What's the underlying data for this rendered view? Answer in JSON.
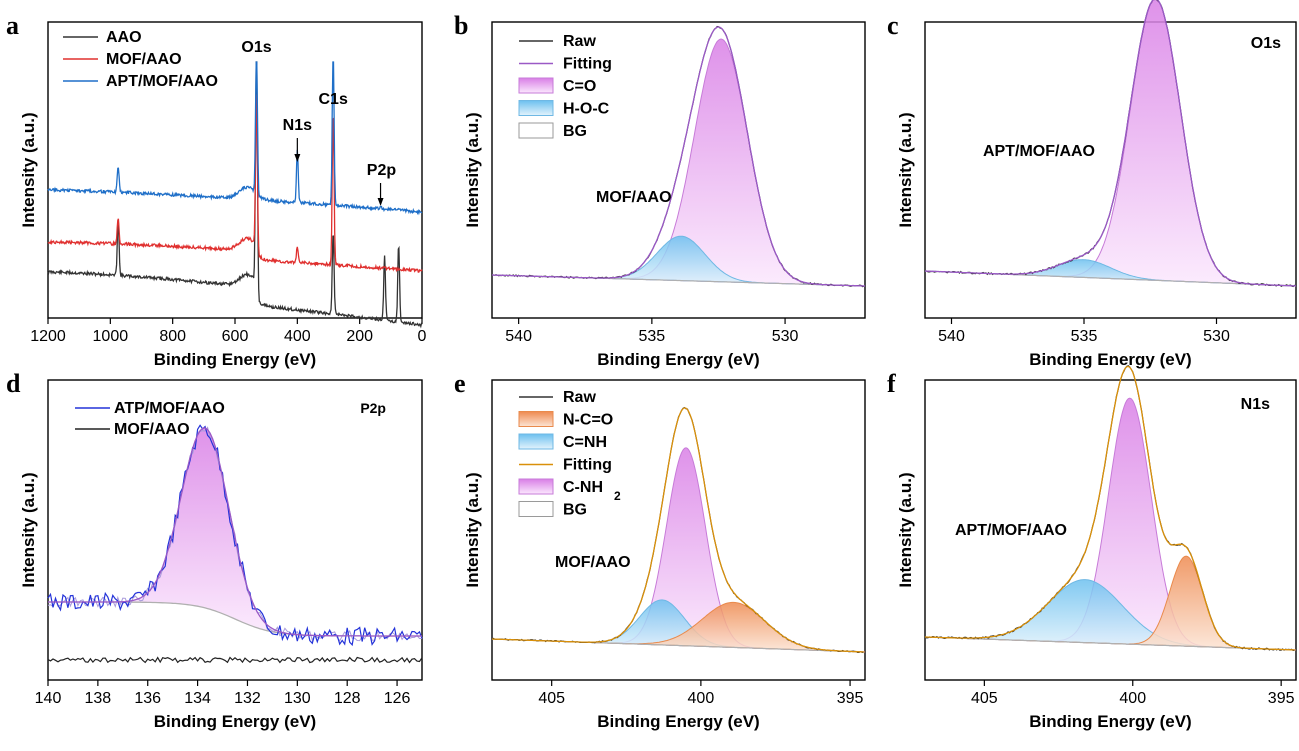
{
  "colors": {
    "black": "#333333",
    "red": "#e0302f",
    "blue": "#1f6fc8",
    "purple": "#9a59c6",
    "pink_fill": "#e6a8ee",
    "cyan_fill": "#9fd5f2",
    "orange_fill": "#f2a878",
    "orange_line": "#d9900a",
    "bg_line": "#b0b0b0",
    "blue_raw": "#2433d9"
  },
  "chart_data": [
    {
      "id": "a",
      "letter": "a",
      "type": "line",
      "xlabel": "Binding Energy (eV)",
      "ylabel": "Intensity (a.u.)",
      "xlim": [
        1200,
        0
      ],
      "xticks": [
        "1200",
        "1000",
        "800",
        "600",
        "400",
        "200",
        "0"
      ],
      "xtick_values": [
        1200,
        1000,
        800,
        600,
        400,
        200,
        0
      ],
      "legend": [
        "AAO",
        "MOF/AAO",
        "APT/MOF/AAO"
      ],
      "annotations": [
        "O1s",
        "N1s",
        "C1s",
        "P2p"
      ],
      "series": [
        {
          "name": "AAO",
          "peaks": [
            [
              975,
              0.22
            ],
            [
              531,
              1.0
            ],
            [
              285,
              0.32
            ],
            [
              120,
              0.25
            ],
            [
              75,
              0.3
            ]
          ]
        },
        {
          "name": "MOF/AAO",
          "peaks": [
            [
              975,
              0.1
            ],
            [
              531,
              0.62
            ],
            [
              400,
              0.06
            ],
            [
              285,
              0.6
            ]
          ]
        },
        {
          "name": "APT/MOF/AAO",
          "peaks": [
            [
              975,
              0.1
            ],
            [
              531,
              0.6
            ],
            [
              400,
              0.2
            ],
            [
              285,
              0.62
            ],
            [
              133,
              0.01
            ]
          ]
        }
      ]
    },
    {
      "id": "b",
      "letter": "b",
      "type": "area",
      "xlabel": "Binding Energy (eV)",
      "ylabel": "Intensity (a.u.)",
      "xlim": [
        541,
        527
      ],
      "xticks": [
        "540",
        "535",
        "530"
      ],
      "xtick_values": [
        540,
        535,
        530
      ],
      "legend": [
        "Raw",
        "Fitting",
        "C=O",
        "H-O-C",
        "BG"
      ],
      "label": "MOF/AAO",
      "components": [
        {
          "name": "C=O",
          "center": 532.4,
          "height": 0.82,
          "width": 1.0
        },
        {
          "name": "H-O-C",
          "center": 533.9,
          "height": 0.15,
          "width": 0.9
        }
      ]
    },
    {
      "id": "c",
      "letter": "c",
      "type": "area",
      "xlabel": "Binding Energy (eV)",
      "ylabel": "Intensity (a.u.)",
      "xlim": [
        541,
        527
      ],
      "xticks": [
        "540",
        "535",
        "530"
      ],
      "xtick_values": [
        540,
        535,
        530
      ],
      "title": "O1s",
      "label": "APT/MOF/AAO",
      "components": [
        {
          "name": "C=O",
          "center": 532.3,
          "height": 0.95,
          "width": 0.95
        },
        {
          "name": "H-O-C",
          "center": 535.0,
          "height": 0.06,
          "width": 1.0
        }
      ]
    },
    {
      "id": "d",
      "letter": "d",
      "type": "line",
      "xlabel": "Binding Energy (eV)",
      "ylabel": "Intensity (a.u.)",
      "xlim": [
        140,
        125
      ],
      "xticks": [
        "140",
        "138",
        "136",
        "134",
        "132",
        "130",
        "128",
        "126"
      ],
      "xtick_values": [
        140,
        138,
        136,
        134,
        132,
        130,
        128,
        126
      ],
      "title": "P2p",
      "legend": [
        "ATP/MOF/AAO",
        "MOF/AAO"
      ],
      "components": [
        {
          "name": "P2p",
          "center": 133.7,
          "height": 0.6,
          "width": 0.95
        }
      ]
    },
    {
      "id": "e",
      "letter": "e",
      "type": "area",
      "xlabel": "Binding Energy (eV)",
      "ylabel": "Intensity (a.u.)",
      "xlim": [
        407,
        394.5
      ],
      "xticks": [
        "405",
        "400",
        "395"
      ],
      "xtick_values": [
        405,
        400,
        395
      ],
      "legend": [
        "Raw",
        "N-C=O",
        "C=NH",
        "Fitting",
        "C-NH",
        "BG"
      ],
      "label": "MOF/AAO",
      "components": [
        {
          "name": "C-NH2",
          "center": 400.5,
          "height": 0.66,
          "width": 0.65
        },
        {
          "name": "C=NH",
          "center": 401.3,
          "height": 0.15,
          "width": 0.75
        },
        {
          "name": "N-C=O",
          "center": 398.9,
          "height": 0.15,
          "width": 1.05
        }
      ]
    },
    {
      "id": "f",
      "letter": "f",
      "type": "area",
      "xlabel": "Binding Energy (eV)",
      "ylabel": "Intensity (a.u.)",
      "xlim": [
        407,
        394.5
      ],
      "xticks": [
        "405",
        "400",
        "395"
      ],
      "xtick_values": [
        405,
        400,
        395
      ],
      "title": "N1s",
      "label": "APT/MOF/AAO",
      "components": [
        {
          "name": "C-NH2",
          "center": 400.1,
          "height": 0.82,
          "width": 0.72
        },
        {
          "name": "C=NH",
          "center": 401.6,
          "height": 0.21,
          "width": 1.25
        },
        {
          "name": "N-C=O",
          "center": 398.2,
          "height": 0.3,
          "width": 0.55
        }
      ]
    }
  ]
}
